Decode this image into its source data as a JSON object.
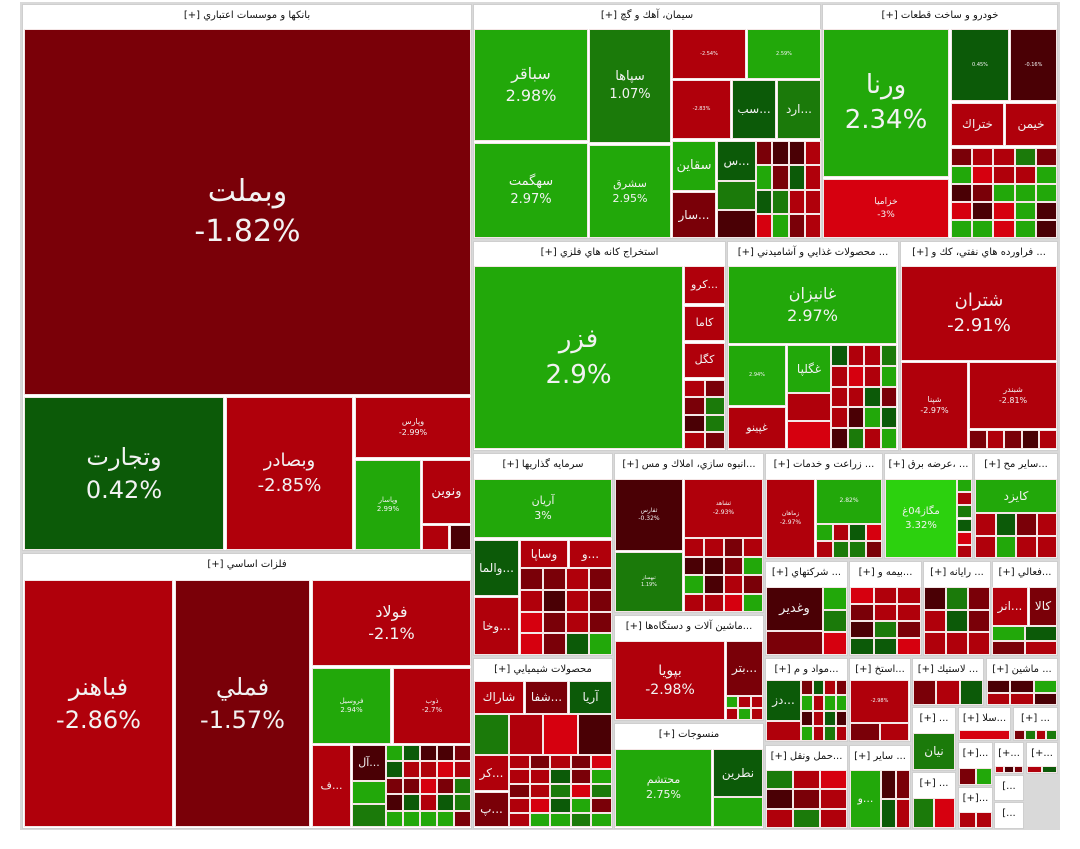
{
  "colors": {
    "dark_red": "#7a0008",
    "red": "#b0000b",
    "bright_red": "#d6000f",
    "maroon": "#4a0005",
    "green": "#22a80a",
    "mid_green": "#1b7a0a",
    "dark_green": "#0c5a08",
    "bright_green": "#2cd10e"
  },
  "sectors": [
    {
      "title": "بانکها و موسسات اعتباري [+]",
      "tiles": [
        {
          "ticker": "وبملت",
          "change": "-1.82%",
          "color": "#7a0008"
        },
        {
          "ticker": "وتجارت",
          "change": "0.42%",
          "color": "#0c5a08"
        },
        {
          "ticker": "وبصادر",
          "change": "-2.85%",
          "color": "#b0000b"
        },
        {
          "ticker": "وپارس",
          "change": "-2.99%",
          "color": "#b0000b"
        },
        {
          "ticker": "وپاسار",
          "change": "2.99%",
          "color": "#22a80a"
        },
        {
          "ticker": "ونوين",
          "color": "#b0000b"
        },
        {
          "color": "#b0000b"
        },
        {
          "color": "#4a0005"
        }
      ]
    },
    {
      "title": "فلزات اساسي [+]",
      "tiles": [
        {
          "ticker": "فباهنر",
          "change": "-2.86%",
          "color": "#b0000b"
        },
        {
          "ticker": "فملي",
          "change": "-1.57%",
          "color": "#7a0008"
        },
        {
          "ticker": "فولاد",
          "change": "-2.1%",
          "color": "#b0000b"
        },
        {
          "ticker": "فروسيل",
          "change": "2.94%",
          "color": "#22a80a"
        },
        {
          "ticker": "ذوب",
          "change": "-2.7%",
          "color": "#b0000b"
        },
        {
          "ticker": "...ف",
          "color": "#b0000b"
        },
        {
          "ticker": "...آل",
          "color": "#4a0005"
        }
      ]
    },
    {
      "title": "سيمان، آهك و گچ [+]",
      "tiles": [
        {
          "ticker": "سباقر",
          "change": "2.98%",
          "color": "#22a80a"
        },
        {
          "ticker": "سهگمت",
          "change": "2.97%",
          "color": "#22a80a"
        },
        {
          "ticker": "سپاها",
          "change": "1.07%",
          "color": "#1b7a0a"
        },
        {
          "ticker": "سشرق",
          "change": "2.95%",
          "color": "#22a80a"
        },
        {
          "change": "-2.54%",
          "color": "#b0000b"
        },
        {
          "change": "2.59%",
          "color": "#22a80a"
        },
        {
          "change": "-2.83%",
          "color": "#b0000b"
        },
        {
          "ticker": "...سب",
          "color": "#0c5a08"
        },
        {
          "ticker": "...ارد",
          "color": "#1b7a0a"
        },
        {
          "ticker": "سقاين",
          "color": "#22a80a"
        },
        {
          "ticker": "...س",
          "color": "#0c5a08"
        },
        {
          "ticker": "...سار",
          "color": "#7a0008"
        }
      ]
    },
    {
      "title": "خودرو و ساخت قطعات [+]",
      "tiles": [
        {
          "ticker": "ورنا",
          "change": "2.34%",
          "color": "#22a80a"
        },
        {
          "ticker": "خزاميا",
          "change": "-3%",
          "color": "#d6000f"
        },
        {
          "change": "0.45%",
          "color": "#0c5a08"
        },
        {
          "change": "-0.16%",
          "color": "#4a0005"
        },
        {
          "ticker": "ختراك",
          "color": "#b0000b"
        },
        {
          "ticker": "خيمن",
          "color": "#b0000b"
        }
      ]
    },
    {
      "title": "استخراج كانه هاي فلزي [+]",
      "tiles": [
        {
          "ticker": "فزر",
          "change": "2.9%",
          "color": "#22a80a"
        },
        {
          "ticker": "...كرو",
          "color": "#b0000b"
        },
        {
          "ticker": "كاما",
          "color": "#b0000b"
        },
        {
          "ticker": "كگل",
          "color": "#b0000b"
        }
      ]
    },
    {
      "title": "... محصولات غذايي و آشاميدني [+]",
      "tiles": [
        {
          "ticker": "غانيزان",
          "change": "2.97%",
          "color": "#22a80a"
        },
        {
          "change": "2.94%",
          "color": "#22a80a"
        },
        {
          "ticker": "غگلپا",
          "color": "#22a80a"
        },
        {
          "ticker": "غپينو",
          "color": "#b0000b"
        }
      ]
    },
    {
      "title": "... فراورده هاي نفتي، كك و [+]",
      "tiles": [
        {
          "ticker": "شتران",
          "change": "-2.91%",
          "color": "#b0000b"
        },
        {
          "ticker": "شپنا",
          "change": "-2.97%",
          "color": "#b0000b"
        },
        {
          "ticker": "شبندر",
          "change": "-2.81%",
          "color": "#b0000b"
        }
      ]
    },
    {
      "title": "سرمايه گذاريها [+]",
      "tiles": [
        {
          "ticker": "آريان",
          "change": "3%",
          "color": "#22a80a"
        },
        {
          "ticker": "...والما",
          "color": "#0c5a08"
        },
        {
          "ticker": "وساپا",
          "color": "#b0000b"
        },
        {
          "ticker": "...و",
          "color": "#b0000b"
        },
        {
          "ticker": "...وخا",
          "color": "#b0000b"
        }
      ]
    },
    {
      "title": "...انبوه سازي، املاك و مس [+]",
      "tiles": [
        {
          "ticker": "ثفارس",
          "change": "-0.32%",
          "color": "#4a0005"
        },
        {
          "ticker": "ثشاهد",
          "change": "-2.93%",
          "color": "#b0000b"
        },
        {
          "ticker": "ثبهساز",
          "change": "1.19%",
          "color": "#1b7a0a"
        }
      ]
    },
    {
      "title": "...ماشين آلات و دستگاه‌ها [+]",
      "tiles": [
        {
          "ticker": "بپويا",
          "change": "-2.98%",
          "color": "#b0000b"
        },
        {
          "ticker": "...بتر",
          "color": "#7a0008"
        }
      ]
    },
    {
      "title": "منسوجات [+]",
      "tiles": [
        {
          "ticker": "محتشم",
          "change": "2.75%",
          "color": "#22a80a"
        },
        {
          "ticker": "نطرين",
          "color": "#0c5a08"
        },
        {
          "color": "#22a80a"
        }
      ]
    },
    {
      "title": "محصولات شيميايي [+]",
      "tiles": [
        {
          "ticker": "شاراك",
          "color": "#b0000b"
        },
        {
          "ticker": "...شفا",
          "color": "#7a0008"
        },
        {
          "ticker": "آريا",
          "color": "#0c5a08"
        },
        {
          "ticker": "...كر",
          "color": "#b0000b"
        },
        {
          "ticker": "...پ",
          "color": "#7a0008"
        }
      ]
    },
    {
      "title": "... زراعت و خدمات [+]",
      "tiles": [
        {
          "ticker": "زماهان",
          "change": "-2.97%",
          "color": "#b0000b"
        },
        {
          "change": "2.82%",
          "color": "#22a80a"
        }
      ]
    },
    {
      "title": "... ،عرضه برق [+]",
      "tiles": [
        {
          "ticker": "مگاز04غ",
          "change": "3.32%",
          "color": "#2cd10e"
        }
      ]
    },
    {
      "title": "...ساير مح [+]",
      "tiles": [
        {
          "ticker": "كايزد",
          "color": "#22a80a"
        }
      ]
    },
    {
      "title": "... شركتهاي [+]",
      "tiles": [
        {
          "ticker": "وغدير",
          "color": "#4a0005"
        }
      ]
    },
    {
      "title": "...بيمه و [+]",
      "tiles": []
    },
    {
      "title": "... رايانه [+]",
      "tiles": []
    },
    {
      "title": "...فعالي [+]",
      "tiles": [
        {
          "ticker": "...انر",
          "color": "#b0000b"
        },
        {
          "ticker": "كالا",
          "color": "#7a0008"
        }
      ]
    },
    {
      "title": "...مواد و م [+]",
      "tiles": [
        {
          "ticker": "...دز",
          "color": "#0c5a08"
        }
      ]
    },
    {
      "title": "...استخ [+]",
      "tiles": [
        {
          "change": "-2.98%",
          "color": "#b0000b"
        }
      ]
    },
    {
      "title": "... لاستيك [+]",
      "tiles": []
    },
    {
      "title": "... ماشين [+]",
      "tiles": []
    },
    {
      "title": "... [+]",
      "tiles": [
        {
          "ticker": "نيان",
          "color": "#1b7a0a"
        }
      ]
    },
    {
      "title": "...سلا [+]",
      "tiles": []
    },
    {
      "title": "... [+]",
      "tiles": []
    },
    {
      "title": "...[+]",
      "tiles": []
    },
    {
      "title": "...+]",
      "tiles": []
    },
    {
      "title": "...+]",
      "tiles": []
    },
    {
      "title": "...حمل ونقل [+]",
      "tiles": []
    },
    {
      "title": "... ساير [+]",
      "tiles": [
        {
          "ticker": "...و",
          "color": "#22a80a"
        }
      ]
    },
    {
      "title": "... [+]",
      "tiles": []
    },
    {
      "title": "...[+]",
      "tiles": []
    },
    {
      "title": "...]",
      "tiles": []
    },
    {
      "title": "...]",
      "tiles": []
    }
  ]
}
